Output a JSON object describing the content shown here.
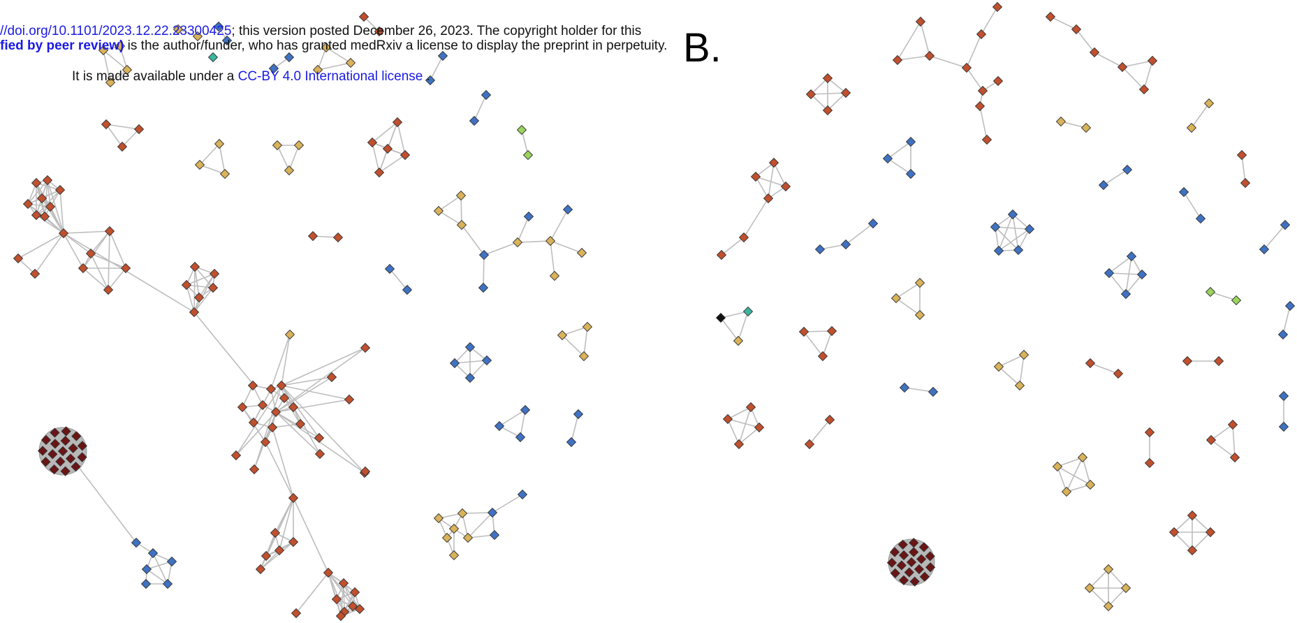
{
  "header": {
    "line1_link": "//doi.org/10.1101/2023.12.22.23300425",
    "line1_text": "; this version posted December 26, 2023. The copyright holder for this",
    "line2_bold": "fied by peer review)",
    "line2_text": " is the author/funder, who has granted medRxiv a license to display the preprint in perpetuity.",
    "line3_text": "It is made available under a ",
    "line3_link": "CC-BY 4.0 International license",
    "line3_end": " ."
  },
  "panel_label": "B.",
  "colors": {
    "red": "#c0502e",
    "tan": "#d9b25a",
    "blue": "#3f72c2",
    "green": "#9ad45c",
    "teal": "#3bb4a0",
    "darkred": "#6a1515",
    "black": "#111111",
    "edge": "#bdbdbd"
  }
}
